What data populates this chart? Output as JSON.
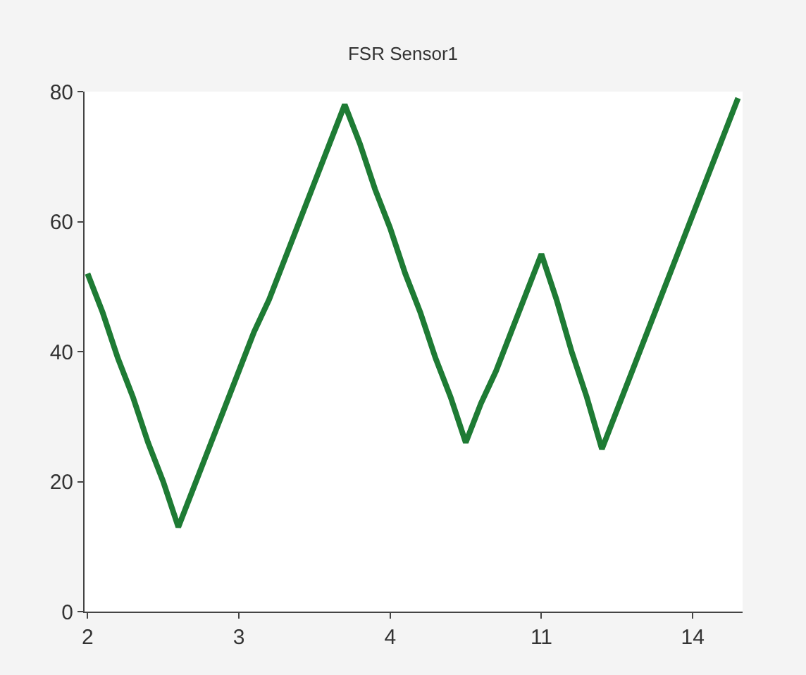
{
  "chart_data": {
    "type": "line",
    "title": "FSR Sensor1",
    "categories": [
      "2",
      null,
      null,
      null,
      null,
      null,
      null,
      null,
      null,
      null,
      "3",
      null,
      null,
      null,
      null,
      null,
      null,
      null,
      null,
      null,
      "4",
      null,
      null,
      null,
      null,
      null,
      null,
      null,
      null,
      null,
      "11",
      null,
      null,
      null,
      null,
      null,
      null,
      null,
      null,
      null,
      "14",
      null,
      null,
      null
    ],
    "series": [
      {
        "color": "#1e7b34",
        "values": [
          52,
          46,
          39,
          33,
          26,
          20,
          13,
          19,
          25,
          31,
          37,
          43,
          48,
          54,
          60,
          66,
          72,
          78,
          72,
          65,
          59,
          52,
          46,
          39,
          33,
          26,
          32,
          37,
          43,
          49,
          55,
          48,
          40,
          33,
          25,
          31,
          37,
          43,
          49,
          55,
          61,
          67,
          73,
          79
        ]
      }
    ],
    "ylim": [
      0,
      80
    ],
    "yticks": [
      0,
      20,
      40,
      60,
      80
    ],
    "legend": false,
    "marker": "none",
    "line_style": "solid"
  }
}
